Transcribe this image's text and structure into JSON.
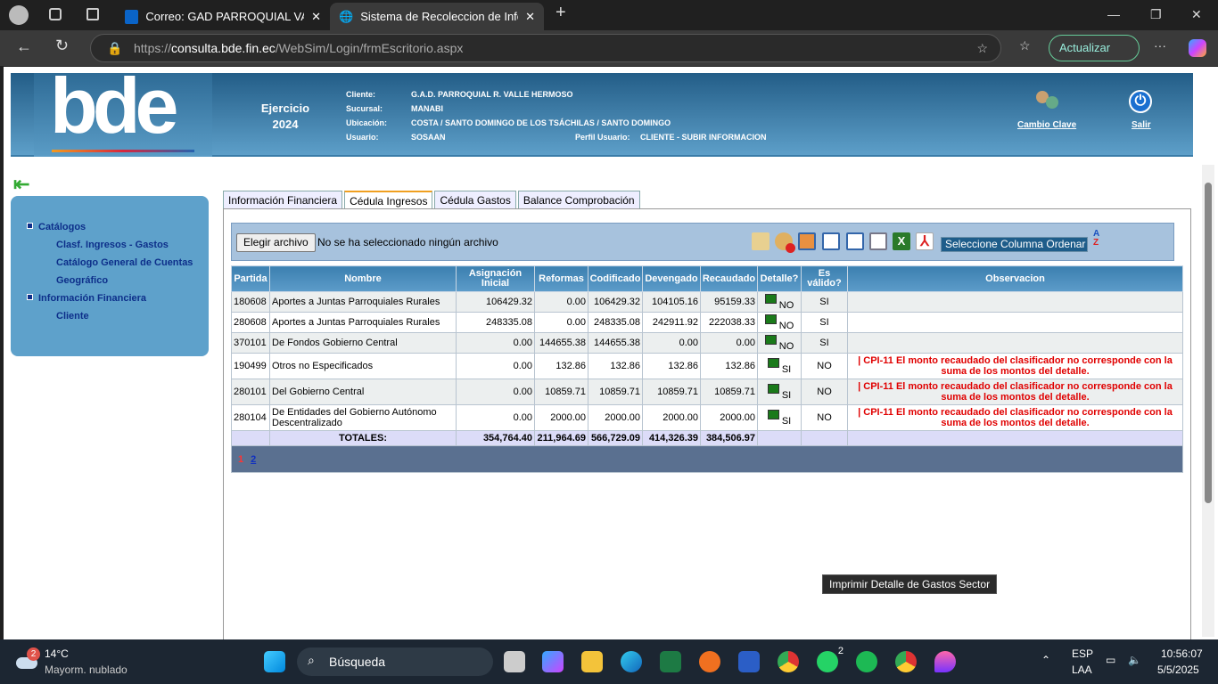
{
  "browser": {
    "tabs": [
      {
        "title": "Correo: GAD PARROQUIAL VALLE"
      },
      {
        "title": "Sistema de Recoleccion de Inform"
      }
    ],
    "url_scheme": "https://",
    "url_host": "consulta.bde.fin.ec",
    "url_path": "/WebSim/Login/frmEscritorio.aspx",
    "update_label": "Actualizar"
  },
  "header": {
    "logo": "bde",
    "ejercicio_label": "Ejercicio",
    "year": "2024",
    "cliente_label": "Cliente:",
    "cliente": "G.A.D. PARROQUIAL R. VALLE HERMOSO",
    "sucursal_label": "Sucursal:",
    "sucursal": "MANABI",
    "ubicacion_label": "Ubicación:",
    "ubicacion": "COSTA / SANTO DOMINGO DE LOS TSÁCHILAS / SANTO DOMINGO",
    "usuario_label": "Usuario:",
    "usuario": "SOSAAN",
    "perfil_label": "Perfil Usuario:",
    "perfil": "CLIENTE - SUBIR INFORMACION",
    "cambio_clave": "Cambio Clave",
    "salir": "Salir"
  },
  "sidebar": {
    "groups": [
      {
        "label": "Catálogos",
        "items": [
          "Clasf. Ingresos - Gastos",
          "Catálogo General de Cuentas",
          "Geográfico"
        ]
      },
      {
        "label": "Información Financiera",
        "items": [
          "Cliente"
        ]
      }
    ]
  },
  "tabs": [
    "Información Financiera",
    "Cédula Ingresos",
    "Cédula Gastos",
    "Balance Comprobación"
  ],
  "toolbar": {
    "file_button": "Elegir archivo",
    "file_status": "No se ha seleccionado ningún archivo",
    "sort_select": "Seleccione Columna Ordenar"
  },
  "table": {
    "headers": [
      "Partida",
      "Nombre",
      "Asignación Inicial",
      "Reformas",
      "Codificado",
      "Devengado",
      "Recaudado",
      "Detalle?",
      "Es válido?",
      "Observacion"
    ],
    "rows": [
      [
        "180608",
        "Aportes a Juntas Parroquiales Rurales",
        "106429.32",
        "0.00",
        "106429.32",
        "104105.16",
        "95159.33",
        "NO",
        "SI",
        ""
      ],
      [
        "280608",
        "Aportes a Juntas Parroquiales Rurales",
        "248335.08",
        "0.00",
        "248335.08",
        "242911.92",
        "222038.33",
        "NO",
        "SI",
        ""
      ],
      [
        "370101",
        "De Fondos Gobierno Central",
        "0.00",
        "144655.38",
        "144655.38",
        "0.00",
        "0.00",
        "NO",
        "SI",
        ""
      ],
      [
        "190499",
        "Otros no Especificados",
        "0.00",
        "132.86",
        "132.86",
        "132.86",
        "132.86",
        "SI",
        "NO",
        "| CPI-11 El monto recaudado del clasificador no corresponde con la suma de los montos del detalle."
      ],
      [
        "280101",
        "Del Gobierno Central",
        "0.00",
        "10859.71",
        "10859.71",
        "10859.71",
        "10859.71",
        "SI",
        "NO",
        "| CPI-11 El monto recaudado del clasificador no corresponde con la suma de los montos del detalle."
      ],
      [
        "280104",
        "De Entidades del Gobierno Autónomo Descentralizado",
        "0.00",
        "2000.00",
        "2000.00",
        "2000.00",
        "2000.00",
        "SI",
        "NO",
        "| CPI-11 El monto recaudado del clasificador no corresponde con la suma de los montos del detalle."
      ]
    ],
    "totals_label": "TOTALES:",
    "totals": [
      "354,764.40",
      "211,964.69",
      "566,729.09",
      "414,326.39",
      "384,506.97"
    ],
    "pages": [
      "1",
      "2"
    ],
    "current_page": "1"
  },
  "tooltip": "Imprimir Detalle de Gastos Sector",
  "taskbar": {
    "temp": "14°C",
    "weather": "Mayorm. nublado",
    "weather_badge": "2",
    "search": "Búsqueda",
    "lang1": "ESP",
    "lang2": "LAA",
    "time": "10:56:07",
    "date": "5/5/2025",
    "whatsapp_badge": "2"
  }
}
